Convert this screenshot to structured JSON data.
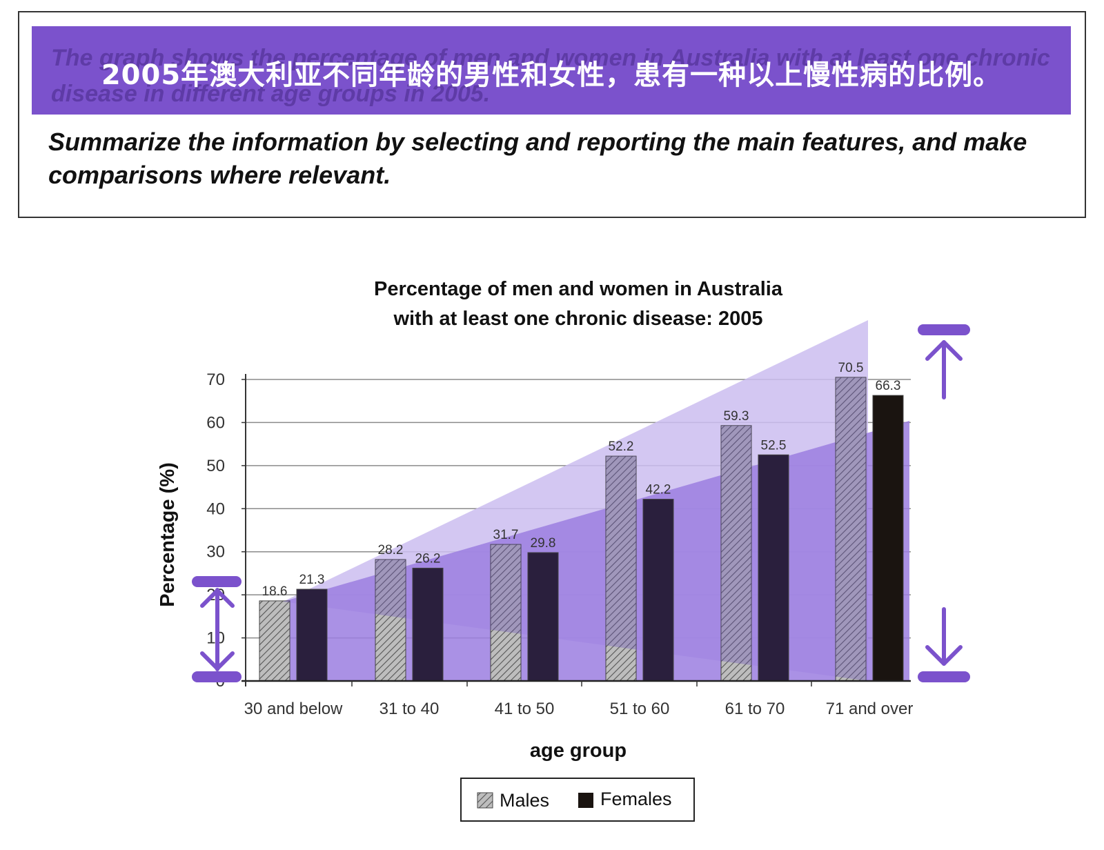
{
  "prompt": {
    "english_text": "The graph shows the percentage of men and women in Australia with at least one chronic disease in different age groups in 2005.",
    "chinese_text": "2005年澳大利亚不同年龄的男性和女性，患有一种以上慢性病的比例。",
    "instruction": "Summarize the information by selecting and reporting the main features, and make comparisons where relevant."
  },
  "colors": {
    "banner": "#7b52cc",
    "highlight_light": "#cbbdf0",
    "highlight_dark": "#9b7ee0",
    "annotation": "#7b52cc",
    "male_bar": "#b9b9b9",
    "female_bar": "#2a1f3d"
  },
  "chart_data": {
    "type": "bar",
    "title": [
      "Percentage of men and women in Australia",
      "with at least one chronic disease: 2005"
    ],
    "xlabel": "age group",
    "ylabel": "Percentage (%)",
    "ylim": [
      0,
      70
    ],
    "yticks": [
      0,
      10,
      20,
      30,
      40,
      50,
      60,
      70
    ],
    "grid": true,
    "legend_position": "bottom-center",
    "categories": [
      "30 and below",
      "31 to 40",
      "41 to 50",
      "51 to 60",
      "61 to 70",
      "71 and over"
    ],
    "series": [
      {
        "name": "Males",
        "pattern": "hatched",
        "values": [
          18.6,
          28.2,
          31.7,
          52.2,
          59.3,
          70.5
        ]
      },
      {
        "name": "Females",
        "pattern": "solid",
        "values": [
          21.3,
          26.2,
          29.8,
          42.2,
          52.5,
          66.3
        ]
      }
    ],
    "data_labels": [
      [
        "18.6",
        "28.2",
        "31.7",
        "52.2",
        "59.3",
        "70.5"
      ],
      [
        "21.3",
        "26.2",
        "29.8",
        "42.2",
        "52.5",
        "66.3"
      ]
    ]
  }
}
